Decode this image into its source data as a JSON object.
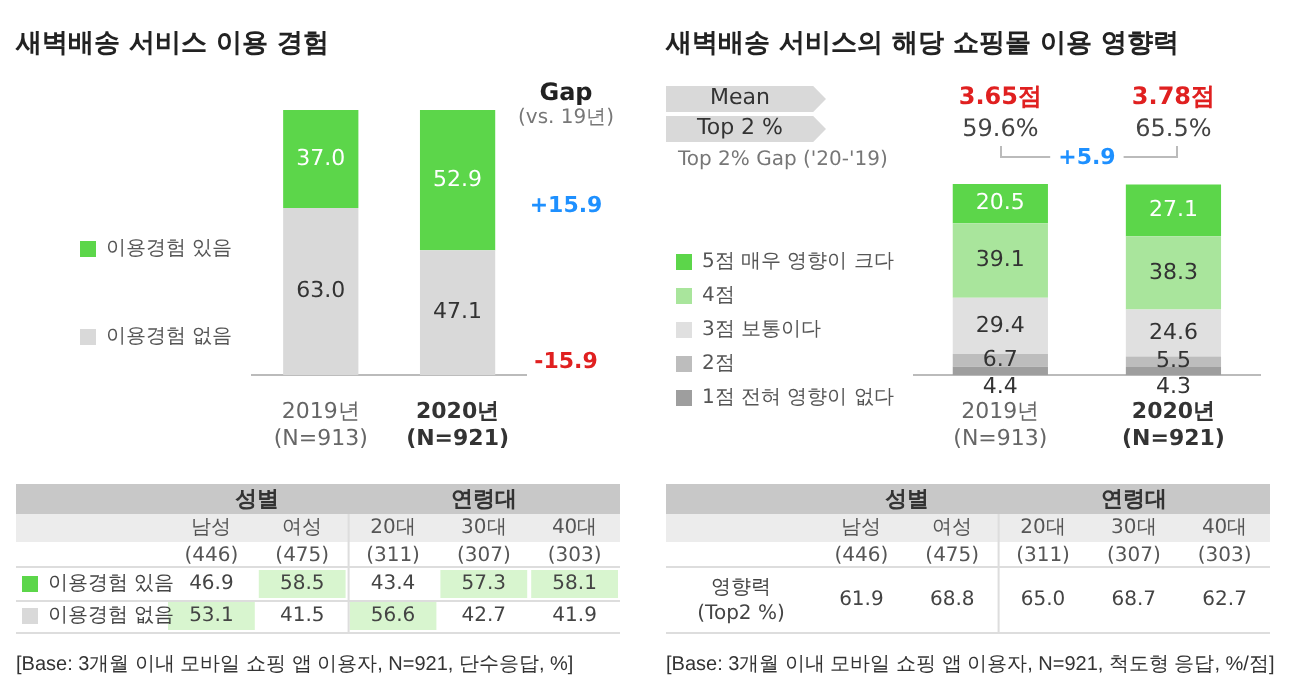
{
  "chart_data": [
    {
      "type": "bar",
      "stacked": true,
      "title": "새벽배송 서비스 이용 경험",
      "categories": [
        "2019년\n(N=913)",
        "2020년\n(N=921)"
      ],
      "legend": "left",
      "series": [
        {
          "name": "이용경험 없음",
          "color": "#d9d9d9",
          "values": [
            63.0,
            47.1
          ],
          "value_labels": [
            "63.0",
            "47.1"
          ]
        },
        {
          "name": "이용경험 있음",
          "color": "#5cd64a",
          "values": [
            37.0,
            52.9
          ],
          "value_labels": [
            "37.0",
            "52.9"
          ]
        }
      ],
      "annotations": [
        "Gap",
        "(vs. 19년)",
        "+15.9",
        "-15.9"
      ]
    },
    {
      "type": "heatmap",
      "categories": [
        "남성\n(446)",
        "여성\n(475)",
        "20대\n(311)",
        "30대\n(307)",
        "40대\n(303)"
      ],
      "y_categories": [
        "이용경험 있음",
        "이용경험 없음"
      ],
      "cells": [
        [
          46.9,
          58.5,
          43.4,
          57.3,
          58.1
        ],
        [
          53.1,
          41.5,
          56.6,
          42.7,
          41.9
        ]
      ],
      "cell_labels": [
        [
          "46.9",
          "58.5",
          "43.4",
          "57.3",
          "58.1"
        ],
        [
          "53.1",
          "41.5",
          "56.6",
          "42.7",
          "41.9"
        ]
      ],
      "annotations": [
        "성별",
        "연령대",
        "[Base: 3개월 이내 모바일 쇼핑 앱 이용자, N=921, 단수응답, %]"
      ]
    },
    {
      "type": "bar",
      "stacked": true,
      "title": "새벽배송 서비스의 해당 쇼핑몰 이용 영향력",
      "categories": [
        "2019년\n(N=913)",
        "2020년\n(N=921)"
      ],
      "legend": "left",
      "series": [
        {
          "name": "1점 전혀 영향이 없다",
          "color": "#9e9e9e",
          "values": [
            4.4,
            4.3
          ],
          "value_labels": [
            "4.4",
            "4.3"
          ]
        },
        {
          "name": "2점",
          "color": "#bdbdbd",
          "values": [
            6.7,
            5.5
          ],
          "value_labels": [
            "6.7",
            "5.5"
          ]
        },
        {
          "name": "3점 보통이다",
          "color": "#e0e0e0",
          "values": [
            29.4,
            24.6
          ],
          "value_labels": [
            "29.4",
            "24.6"
          ]
        },
        {
          "name": "4점",
          "color": "#a9e59c",
          "values": [
            39.1,
            38.3
          ],
          "value_labels": [
            "39.1",
            "38.3"
          ]
        },
        {
          "name": "5점 매우 영향이 크다",
          "color": "#5cd64a",
          "values": [
            20.5,
            27.1
          ],
          "value_labels": [
            "20.5",
            "27.1"
          ]
        }
      ],
      "annotations": [
        "Mean",
        "Top 2 %",
        "Top 2% Gap ('20-'19)",
        "3.65점",
        "3.78점",
        "59.6%",
        "65.5%",
        "+5.9"
      ]
    },
    {
      "type": "heatmap",
      "categories": [
        "남성\n(446)",
        "여성\n(475)",
        "20대\n(311)",
        "30대\n(307)",
        "40대\n(303)"
      ],
      "y_categories": [
        "영향력\n(Top2 %)"
      ],
      "cells": [
        [
          61.9,
          68.8,
          65.0,
          68.7,
          62.7
        ]
      ],
      "cell_labels": [
        [
          "61.9",
          "68.8",
          "65.0",
          "68.7",
          "62.7"
        ]
      ],
      "annotations": [
        "성별",
        "연령대",
        "[Base: 3개월 이내 모바일 쇼핑 앱 이용자, N=921, 척도형 응답, %/점]"
      ]
    }
  ]
}
